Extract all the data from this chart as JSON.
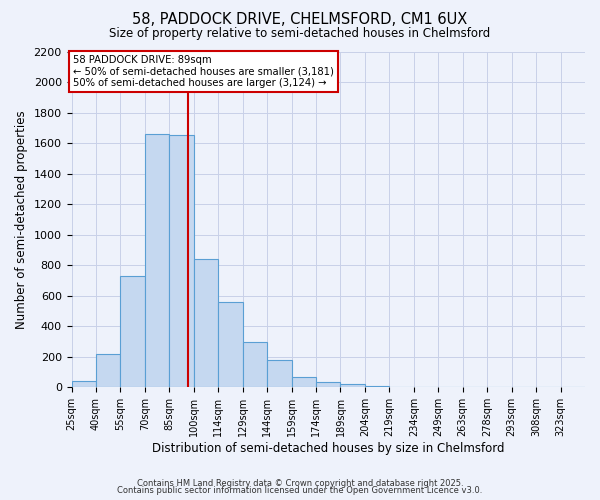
{
  "title": "58, PADDOCK DRIVE, CHELMSFORD, CM1 6UX",
  "subtitle": "Size of property relative to semi-detached houses in Chelmsford",
  "xlabel": "Distribution of semi-detached houses by size in Chelmsford",
  "ylabel": "Number of semi-detached properties",
  "bar_heights": [
    40,
    220,
    730,
    1660,
    1650,
    840,
    560,
    300,
    180,
    70,
    35,
    20,
    10,
    5,
    2,
    1,
    0,
    0,
    0,
    0,
    0
  ],
  "bin_edges": [
    17.5,
    32.5,
    47.5,
    62.5,
    77.5,
    92.5,
    107.5,
    122.5,
    137.5,
    152.5,
    167.5,
    182.5,
    197.5,
    212.5,
    227.5,
    242.5,
    257.5,
    272.5,
    287.5,
    302.5,
    317.5,
    332.5
  ],
  "tick_labels": [
    "25sqm",
    "40sqm",
    "55sqm",
    "70sqm",
    "85sqm",
    "100sqm",
    "114sqm",
    "129sqm",
    "144sqm",
    "159sqm",
    "174sqm",
    "189sqm",
    "204sqm",
    "219sqm",
    "234sqm",
    "249sqm",
    "263sqm",
    "278sqm",
    "293sqm",
    "308sqm",
    "323sqm"
  ],
  "bar_color": "#c5d8f0",
  "bar_edge_color": "#5a9fd4",
  "background_color": "#eef2fb",
  "grid_color": "#c8d0e8",
  "vertical_line_x": 89,
  "vertical_line_color": "#cc0000",
  "annotation_title": "58 PADDOCK DRIVE: 89sqm",
  "annotation_line1": "← 50% of semi-detached houses are smaller (3,181)",
  "annotation_line2": "50% of semi-detached houses are larger (3,124) →",
  "annotation_box_color": "#ffffff",
  "annotation_box_edge": "#cc0000",
  "ylim": [
    0,
    2200
  ],
  "yticks": [
    0,
    200,
    400,
    600,
    800,
    1000,
    1200,
    1400,
    1600,
    1800,
    2000,
    2200
  ],
  "footer1": "Contains HM Land Registry data © Crown copyright and database right 2025.",
  "footer2": "Contains public sector information licensed under the Open Government Licence v3.0."
}
